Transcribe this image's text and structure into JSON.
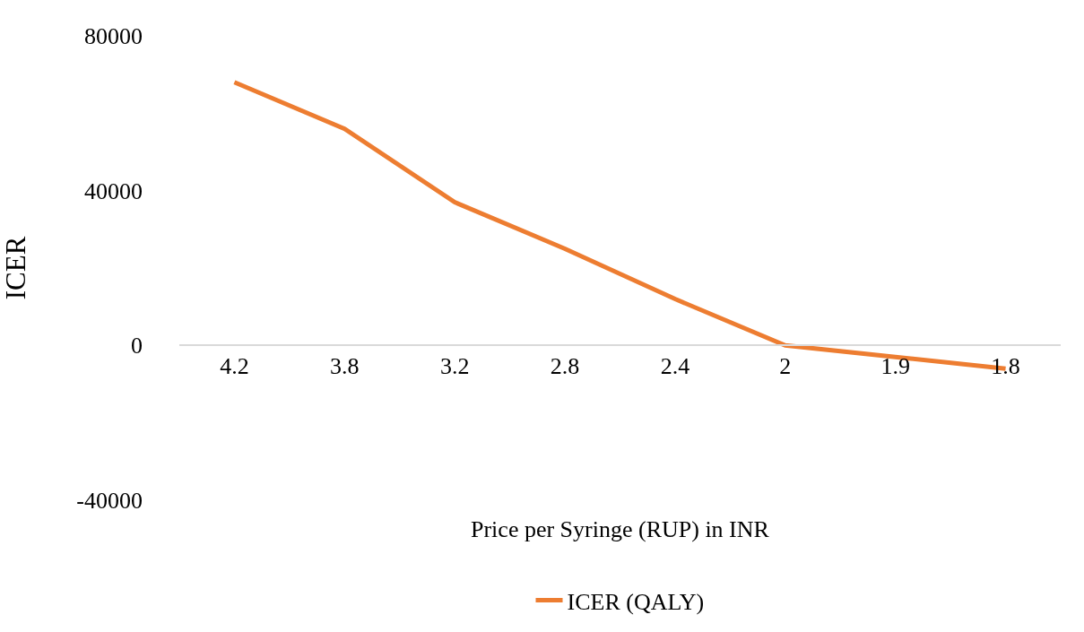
{
  "chart_data": {
    "type": "line",
    "xlabel": "Price per Syringe (RUP) in INR",
    "ylabel": "ICER",
    "categories": [
      "4.2",
      "3.8",
      "3.2",
      "2.8",
      "2.4",
      "2",
      "1.9",
      "1.8"
    ],
    "series": [
      {
        "name": "ICER (QALY)",
        "color": "#ed7d31",
        "values": [
          68000,
          56000,
          37000,
          25000,
          12000,
          0,
          -3000,
          -6000
        ]
      }
    ],
    "ylim": [
      -40000,
      80000
    ],
    "yticks": [
      -40000,
      0,
      40000,
      80000
    ],
    "grid": false,
    "legend": "bottom",
    "marker": "none",
    "line_style": "solid"
  }
}
